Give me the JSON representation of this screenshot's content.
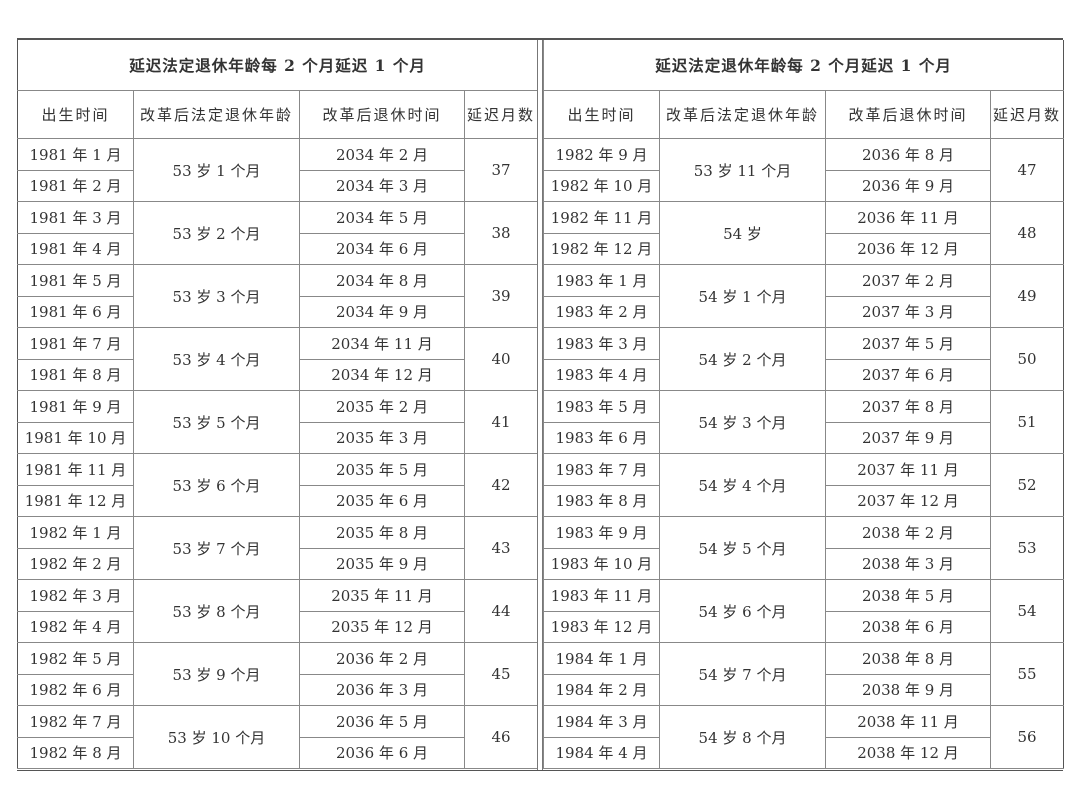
{
  "left": {
    "title": "延迟法定退休年龄每 2 个月延迟 1 个月",
    "headers": [
      "出生时间",
      "改革后法定退休年龄",
      "改革后退休时间",
      "延迟月数"
    ],
    "groups": [
      {
        "births": [
          "1981 年 1 月",
          "1981 年 2 月"
        ],
        "age": "53 岁 1 个月",
        "times": [
          "2034 年 2 月",
          "2034 年 3 月"
        ],
        "months": "37"
      },
      {
        "births": [
          "1981 年 3 月",
          "1981 年 4 月"
        ],
        "age": "53 岁 2 个月",
        "times": [
          "2034 年 5 月",
          "2034 年 6 月"
        ],
        "months": "38"
      },
      {
        "births": [
          "1981 年 5 月",
          "1981 年 6 月"
        ],
        "age": "53 岁 3 个月",
        "times": [
          "2034 年 8 月",
          "2034 年 9 月"
        ],
        "months": "39"
      },
      {
        "births": [
          "1981 年 7 月",
          "1981 年 8 月"
        ],
        "age": "53 岁 4 个月",
        "times": [
          "2034 年 11 月",
          "2034 年 12 月"
        ],
        "months": "40"
      },
      {
        "births": [
          "1981 年 9 月",
          "1981 年 10 月"
        ],
        "age": "53 岁 5 个月",
        "times": [
          "2035 年 2 月",
          "2035 年 3 月"
        ],
        "months": "41"
      },
      {
        "births": [
          "1981 年 11 月",
          "1981 年 12 月"
        ],
        "age": "53 岁 6 个月",
        "times": [
          "2035 年 5 月",
          "2035 年 6 月"
        ],
        "months": "42"
      },
      {
        "births": [
          "1982 年 1 月",
          "1982 年 2 月"
        ],
        "age": "53 岁 7 个月",
        "times": [
          "2035 年 8 月",
          "2035 年 9 月"
        ],
        "months": "43"
      },
      {
        "births": [
          "1982 年 3 月",
          "1982 年 4 月"
        ],
        "age": "53 岁 8 个月",
        "times": [
          "2035 年 11 月",
          "2035 年 12 月"
        ],
        "months": "44"
      },
      {
        "births": [
          "1982 年 5 月",
          "1982 年 6 月"
        ],
        "age": "53 岁 9 个月",
        "times": [
          "2036 年 2 月",
          "2036 年 3 月"
        ],
        "months": "45"
      },
      {
        "births": [
          "1982 年 7 月",
          "1982 年 8 月"
        ],
        "age": "53 岁 10 个月",
        "times": [
          "2036 年 5 月",
          "2036 年 6 月"
        ],
        "months": "46"
      }
    ]
  },
  "right": {
    "title": "延迟法定退休年龄每 2 个月延迟 1 个月",
    "headers": [
      "出生时间",
      "改革后法定退休年龄",
      "改革后退休时间",
      "延迟月数"
    ],
    "groups": [
      {
        "births": [
          "1982 年 9 月",
          "1982 年 10 月"
        ],
        "age": "53 岁 11 个月",
        "times": [
          "2036 年 8 月",
          "2036 年 9 月"
        ],
        "months": "47"
      },
      {
        "births": [
          "1982 年 11 月",
          "1982 年 12 月"
        ],
        "age": "54 岁",
        "times": [
          "2036 年 11 月",
          "2036 年 12 月"
        ],
        "months": "48"
      },
      {
        "births": [
          "1983 年 1 月",
          "1983 年 2 月"
        ],
        "age": "54 岁 1 个月",
        "times": [
          "2037 年 2 月",
          "2037 年 3 月"
        ],
        "months": "49"
      },
      {
        "births": [
          "1983 年 3 月",
          "1983 年 4 月"
        ],
        "age": "54 岁 2 个月",
        "times": [
          "2037 年 5 月",
          "2037 年 6 月"
        ],
        "months": "50"
      },
      {
        "births": [
          "1983 年 5 月",
          "1983 年 6 月"
        ],
        "age": "54 岁 3 个月",
        "times": [
          "2037 年 8 月",
          "2037 年 9 月"
        ],
        "months": "51"
      },
      {
        "births": [
          "1983 年 7 月",
          "1983 年 8 月"
        ],
        "age": "54 岁 4 个月",
        "times": [
          "2037 年 11 月",
          "2037 年 12 月"
        ],
        "months": "52"
      },
      {
        "births": [
          "1983 年 9 月",
          "1983 年 10 月"
        ],
        "age": "54 岁 5 个月",
        "times": [
          "2038 年 2 月",
          "2038 年 3 月"
        ],
        "months": "53"
      },
      {
        "births": [
          "1983 年 11 月",
          "1983 年 12 月"
        ],
        "age": "54 岁 6 个月",
        "times": [
          "2038 年 5 月",
          "2038 年 6 月"
        ],
        "months": "54"
      },
      {
        "births": [
          "1984 年 1 月",
          "1984 年 2 月"
        ],
        "age": "54 岁 7 个月",
        "times": [
          "2038 年 8 月",
          "2038 年 9 月"
        ],
        "months": "55"
      },
      {
        "births": [
          "1984 年 3 月",
          "1984 年 4 月"
        ],
        "age": "54 岁 8 个月",
        "times": [
          "2038 年 11 月",
          "2038 年 12 月"
        ],
        "months": "56"
      }
    ]
  }
}
